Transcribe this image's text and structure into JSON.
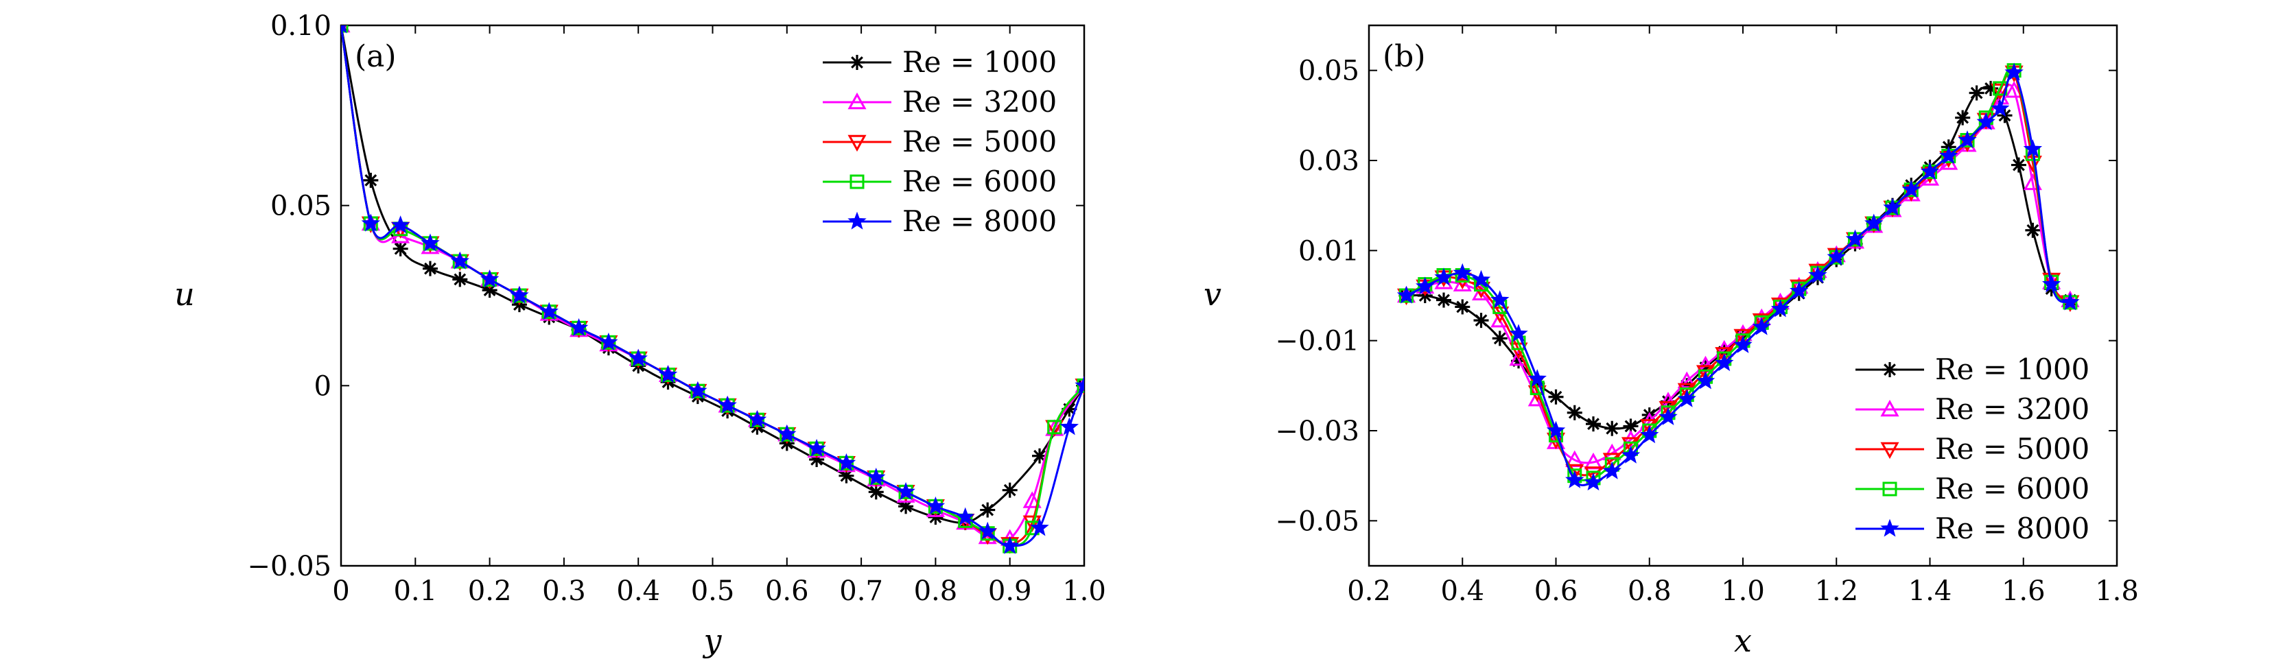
{
  "chart_data": [
    {
      "type": "line",
      "panel_label": "(a)",
      "xlabel": "y",
      "ylabel": "u",
      "xlim": [
        0,
        1.0
      ],
      "ylim": [
        -0.05,
        0.1
      ],
      "xticks": [
        0,
        0.1,
        0.2,
        0.3,
        0.4,
        0.5,
        0.6,
        0.7,
        0.8,
        0.9,
        1.0
      ],
      "xtick_labels": [
        "0",
        "0.1",
        "0.2",
        "0.3",
        "0.4",
        "0.5",
        "0.6",
        "0.7",
        "0.8",
        "0.9",
        "1.0"
      ],
      "yticks": [
        -0.05,
        0,
        0.05,
        0.1
      ],
      "ytick_labels": [
        "−0.05",
        "0",
        "0.05",
        "0.10"
      ],
      "legend_position": "top-right",
      "series": [
        {
          "name": "Re = 1000",
          "re": "1000",
          "color": "#000000",
          "marker": "asterisk",
          "x": [
            0,
            0.04,
            0.08,
            0.12,
            0.16,
            0.2,
            0.24,
            0.28,
            0.32,
            0.36,
            0.4,
            0.44,
            0.48,
            0.52,
            0.56,
            0.6,
            0.64,
            0.68,
            0.72,
            0.76,
            0.8,
            0.84,
            0.87,
            0.9,
            0.94,
            0.98,
            1.0
          ],
          "y": [
            0.1,
            0.057,
            0.038,
            0.0325,
            0.0295,
            0.0265,
            0.0225,
            0.019,
            0.0155,
            0.0105,
            0.0055,
            0.001,
            -0.003,
            -0.007,
            -0.0115,
            -0.016,
            -0.0205,
            -0.025,
            -0.0295,
            -0.0335,
            -0.0365,
            -0.038,
            -0.0345,
            -0.029,
            -0.0195,
            -0.0065,
            0
          ]
        },
        {
          "name": "Re = 3200",
          "re": "3200",
          "color": "#ff00ff",
          "marker": "triangle-up",
          "x": [
            0,
            0.04,
            0.08,
            0.12,
            0.16,
            0.2,
            0.24,
            0.28,
            0.32,
            0.36,
            0.4,
            0.44,
            0.48,
            0.52,
            0.56,
            0.6,
            0.64,
            0.68,
            0.72,
            0.76,
            0.8,
            0.84,
            0.87,
            0.9,
            0.93,
            0.96,
            1.0
          ],
          "y": [
            0.1,
            0.045,
            0.0415,
            0.0385,
            0.0345,
            0.0295,
            0.025,
            0.02,
            0.0155,
            0.0115,
            0.0075,
            0.003,
            -0.0015,
            -0.0055,
            -0.0095,
            -0.0135,
            -0.018,
            -0.022,
            -0.026,
            -0.0305,
            -0.0345,
            -0.038,
            -0.042,
            -0.0425,
            -0.032,
            -0.012,
            0
          ]
        },
        {
          "name": "Re = 5000",
          "re": "5000",
          "color": "#ff0000",
          "marker": "triangle-down",
          "x": [
            0,
            0.04,
            0.08,
            0.12,
            0.16,
            0.2,
            0.24,
            0.28,
            0.32,
            0.36,
            0.4,
            0.44,
            0.48,
            0.52,
            0.56,
            0.6,
            0.64,
            0.68,
            0.72,
            0.76,
            0.8,
            0.84,
            0.87,
            0.9,
            0.93,
            0.96,
            1.0
          ],
          "y": [
            0.1,
            0.045,
            0.0435,
            0.0395,
            0.0345,
            0.0295,
            0.025,
            0.0205,
            0.016,
            0.012,
            0.0075,
            0.003,
            -0.0015,
            -0.0055,
            -0.0095,
            -0.0135,
            -0.0175,
            -0.0215,
            -0.0255,
            -0.0295,
            -0.0335,
            -0.0375,
            -0.0415,
            -0.044,
            -0.038,
            -0.0115,
            0
          ]
        },
        {
          "name": "Re = 6000",
          "re": "6000",
          "color": "#00dd00",
          "marker": "square",
          "x": [
            0,
            0.04,
            0.08,
            0.12,
            0.16,
            0.2,
            0.24,
            0.28,
            0.32,
            0.36,
            0.4,
            0.44,
            0.48,
            0.52,
            0.56,
            0.6,
            0.64,
            0.68,
            0.72,
            0.76,
            0.8,
            0.84,
            0.87,
            0.9,
            0.93,
            0.96,
            1.0
          ],
          "y": [
            0.1,
            0.045,
            0.0435,
            0.0395,
            0.0345,
            0.0295,
            0.025,
            0.0205,
            0.016,
            0.012,
            0.0075,
            0.003,
            -0.0015,
            -0.0055,
            -0.0095,
            -0.0135,
            -0.0175,
            -0.0215,
            -0.0255,
            -0.0295,
            -0.0335,
            -0.0375,
            -0.041,
            -0.0445,
            -0.0395,
            -0.0115,
            0
          ]
        },
        {
          "name": "Re = 8000",
          "re": "8000",
          "color": "#0000ff",
          "marker": "star",
          "x": [
            0,
            0.04,
            0.08,
            0.12,
            0.16,
            0.2,
            0.24,
            0.28,
            0.32,
            0.36,
            0.4,
            0.44,
            0.48,
            0.52,
            0.56,
            0.6,
            0.64,
            0.68,
            0.72,
            0.76,
            0.8,
            0.84,
            0.87,
            0.9,
            0.94,
            0.98,
            1.0
          ],
          "y": [
            0.1,
            0.045,
            0.0445,
            0.0395,
            0.0345,
            0.0295,
            0.025,
            0.0205,
            0.016,
            0.012,
            0.0075,
            0.003,
            -0.0015,
            -0.0055,
            -0.0095,
            -0.0135,
            -0.0175,
            -0.0215,
            -0.0255,
            -0.0295,
            -0.0335,
            -0.0365,
            -0.0405,
            -0.0445,
            -0.0395,
            -0.0115,
            0
          ]
        }
      ]
    },
    {
      "type": "line",
      "panel_label": "(b)",
      "xlabel": "x",
      "ylabel": "v",
      "xlim": [
        0.2,
        1.8
      ],
      "ylim": [
        -0.06,
        0.06
      ],
      "xticks": [
        0.2,
        0.4,
        0.6,
        0.8,
        1.0,
        1.2,
        1.4,
        1.6,
        1.8
      ],
      "xtick_labels": [
        "0.2",
        "0.4",
        "0.6",
        "0.8",
        "1.0",
        "1.2",
        "1.4",
        "1.6",
        "1.8"
      ],
      "yticks": [
        -0.05,
        -0.03,
        -0.01,
        0.01,
        0.03,
        0.05
      ],
      "ytick_labels": [
        "−0.05",
        "−0.03",
        "−0.01",
        "0.01",
        "0.03",
        "0.05"
      ],
      "legend_position": "bottom-right",
      "series": [
        {
          "name": "Re = 1000",
          "re": "1000",
          "color": "#000000",
          "marker": "asterisk",
          "x": [
            0.28,
            0.32,
            0.36,
            0.4,
            0.44,
            0.48,
            0.52,
            0.56,
            0.6,
            0.64,
            0.68,
            0.72,
            0.76,
            0.8,
            0.84,
            0.88,
            0.92,
            0.96,
            1.0,
            1.04,
            1.08,
            1.12,
            1.16,
            1.2,
            1.24,
            1.28,
            1.32,
            1.36,
            1.4,
            1.44,
            1.47,
            1.5,
            1.53,
            1.56,
            1.59,
            1.62,
            1.66,
            1.7
          ],
          "y": [
            0,
            0,
            -0.001,
            -0.0025,
            -0.0055,
            -0.0095,
            -0.0145,
            -0.0195,
            -0.0225,
            -0.026,
            -0.0285,
            -0.0295,
            -0.029,
            -0.0265,
            -0.0235,
            -0.02,
            -0.016,
            -0.0125,
            -0.009,
            -0.006,
            -0.003,
            0.0005,
            0.004,
            0.008,
            0.0115,
            0.016,
            0.02,
            0.0245,
            0.0285,
            0.033,
            0.0395,
            0.045,
            0.046,
            0.04,
            0.029,
            0.0145,
            0.0015,
            -0.001
          ]
        },
        {
          "name": "Re = 3200",
          "re": "3200",
          "color": "#ff00ff",
          "marker": "triangle-up",
          "x": [
            0.28,
            0.32,
            0.36,
            0.4,
            0.44,
            0.48,
            0.52,
            0.56,
            0.6,
            0.64,
            0.68,
            0.72,
            0.76,
            0.8,
            0.84,
            0.88,
            0.92,
            0.96,
            1.0,
            1.04,
            1.08,
            1.12,
            1.16,
            1.2,
            1.24,
            1.28,
            1.32,
            1.36,
            1.4,
            1.44,
            1.48,
            1.52,
            1.55,
            1.58,
            1.62,
            1.66,
            1.7
          ],
          "y": [
            0,
            0.002,
            0.003,
            0.0025,
            0.0005,
            -0.0055,
            -0.014,
            -0.023,
            -0.0325,
            -0.0365,
            -0.037,
            -0.035,
            -0.032,
            -0.028,
            -0.0235,
            -0.019,
            -0.0155,
            -0.012,
            -0.0085,
            -0.005,
            -0.0015,
            0.002,
            0.0055,
            0.009,
            0.012,
            0.0155,
            0.019,
            0.0225,
            0.026,
            0.0295,
            0.0335,
            0.0385,
            0.044,
            0.0455,
            0.025,
            0.003,
            -0.001
          ]
        },
        {
          "name": "Re = 5000",
          "re": "5000",
          "color": "#ff0000",
          "marker": "triangle-down",
          "x": [
            0.28,
            0.32,
            0.36,
            0.4,
            0.44,
            0.48,
            0.52,
            0.56,
            0.6,
            0.64,
            0.68,
            0.72,
            0.76,
            0.8,
            0.84,
            0.88,
            0.92,
            0.96,
            1.0,
            1.04,
            1.08,
            1.12,
            1.16,
            1.2,
            1.24,
            1.28,
            1.32,
            1.36,
            1.4,
            1.44,
            1.48,
            1.52,
            1.55,
            1.58,
            1.62,
            1.66,
            1.7
          ],
          "y": [
            0,
            0.002,
            0.004,
            0.0035,
            0.0015,
            -0.004,
            -0.012,
            -0.0215,
            -0.032,
            -0.039,
            -0.0395,
            -0.0365,
            -0.033,
            -0.029,
            -0.025,
            -0.021,
            -0.017,
            -0.013,
            -0.009,
            -0.0055,
            -0.002,
            0.002,
            0.0055,
            0.009,
            0.0125,
            0.016,
            0.0195,
            0.023,
            0.027,
            0.0305,
            0.034,
            0.039,
            0.0455,
            0.0495,
            0.0295,
            0.0035,
            -0.0015
          ]
        },
        {
          "name": "Re = 6000",
          "re": "6000",
          "color": "#00dd00",
          "marker": "square",
          "x": [
            0.28,
            0.32,
            0.36,
            0.4,
            0.44,
            0.48,
            0.52,
            0.56,
            0.6,
            0.64,
            0.68,
            0.72,
            0.76,
            0.8,
            0.84,
            0.88,
            0.92,
            0.96,
            1.0,
            1.04,
            1.08,
            1.12,
            1.16,
            1.2,
            1.24,
            1.28,
            1.32,
            1.36,
            1.4,
            1.44,
            1.48,
            1.52,
            1.55,
            1.58,
            1.62,
            1.66,
            1.7
          ],
          "y": [
            0,
            0.0025,
            0.0045,
            0.0045,
            0.0025,
            -0.0025,
            -0.0105,
            -0.0205,
            -0.031,
            -0.04,
            -0.0405,
            -0.0375,
            -0.034,
            -0.03,
            -0.026,
            -0.022,
            -0.018,
            -0.014,
            -0.01,
            -0.006,
            -0.0025,
            0.0015,
            0.005,
            0.0085,
            0.0125,
            0.016,
            0.0195,
            0.0235,
            0.0275,
            0.031,
            0.0345,
            0.0395,
            0.046,
            0.05,
            0.0315,
            0.003,
            -0.0015
          ]
        },
        {
          "name": "Re = 8000",
          "re": "8000",
          "color": "#0000ff",
          "marker": "star",
          "x": [
            0.28,
            0.32,
            0.36,
            0.4,
            0.44,
            0.48,
            0.52,
            0.56,
            0.6,
            0.64,
            0.68,
            0.72,
            0.76,
            0.8,
            0.84,
            0.88,
            0.92,
            0.96,
            1.0,
            1.04,
            1.08,
            1.12,
            1.16,
            1.2,
            1.24,
            1.28,
            1.32,
            1.36,
            1.4,
            1.44,
            1.48,
            1.52,
            1.55,
            1.58,
            1.62,
            1.66,
            1.7
          ],
          "y": [
            0,
            0.002,
            0.004,
            0.005,
            0.0035,
            -0.001,
            -0.0085,
            -0.0185,
            -0.03,
            -0.041,
            -0.0415,
            -0.039,
            -0.0355,
            -0.031,
            -0.027,
            -0.023,
            -0.019,
            -0.015,
            -0.011,
            -0.007,
            -0.003,
            0.001,
            0.0045,
            0.0085,
            0.0125,
            0.016,
            0.0195,
            0.0235,
            0.0275,
            0.031,
            0.0345,
            0.0385,
            0.0415,
            0.0495,
            0.0325,
            0.0025,
            -0.0015
          ]
        }
      ]
    }
  ]
}
